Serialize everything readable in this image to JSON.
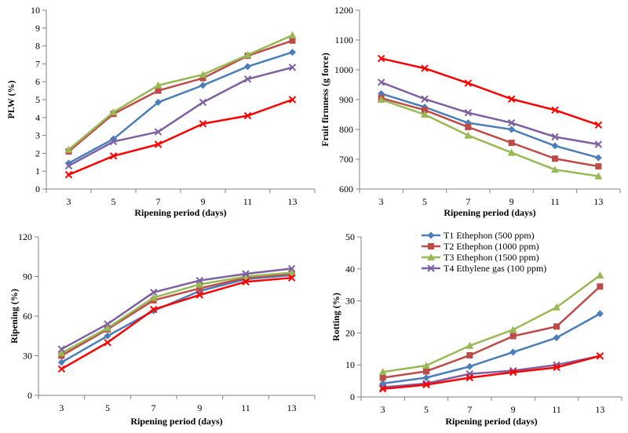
{
  "series_colors": [
    "#4a7ebb",
    "#be4b48",
    "#98b954",
    "#7d60a0",
    "#ff0000"
  ],
  "legend": {
    "entries": [
      "T1 Ethephon (500 ppm)",
      "T2 Ethephon (1000 ppm)",
      "T3 Ethephon (1500 ppm)",
      "T4 Ethylene gas (100 ppm)"
    ]
  },
  "chart_data": [
    {
      "type": "line",
      "xlabel": "Ripening period (days)",
      "ylabel": "PLW (%)",
      "x": [
        3,
        5,
        7,
        9,
        11,
        13
      ],
      "ylim": [
        0,
        10
      ],
      "yticks": [
        0,
        1,
        2,
        3,
        4,
        5,
        6,
        7,
        8,
        9,
        10
      ],
      "series": [
        {
          "name": "T1 Ethephon (500 ppm)",
          "marker": "diamond",
          "values": [
            1.45,
            2.8,
            4.85,
            5.8,
            6.85,
            7.65
          ]
        },
        {
          "name": "T2 Ethephon (1000 ppm)",
          "marker": "square",
          "values": [
            2.1,
            4.2,
            5.5,
            6.2,
            7.45,
            8.3
          ]
        },
        {
          "name": "T3 Ethephon (1500 ppm)",
          "marker": "triangle",
          "values": [
            2.2,
            4.3,
            5.8,
            6.4,
            7.5,
            8.6
          ]
        },
        {
          "name": "T4 Ethylene gas (100 ppm)",
          "marker": "x",
          "values": [
            1.3,
            2.65,
            3.2,
            4.85,
            6.15,
            6.8
          ]
        },
        {
          "marker": "x",
          "values": [
            0.8,
            1.85,
            2.5,
            3.65,
            4.1,
            5.0
          ]
        }
      ]
    },
    {
      "type": "line",
      "xlabel": "Ripening period (days)",
      "ylabel": "Fruit firmness (g force)",
      "x": [
        3,
        5,
        7,
        9,
        11,
        13
      ],
      "ylim": [
        600,
        1200
      ],
      "yticks": [
        600,
        700,
        800,
        900,
        1000,
        1100,
        1200
      ],
      "series": [
        {
          "name": "T1 Ethephon (500 ppm)",
          "marker": "diamond",
          "values": [
            920,
            875,
            822,
            800,
            745,
            705
          ]
        },
        {
          "name": "T2 Ethephon (1000 ppm)",
          "marker": "square",
          "values": [
            905,
            865,
            808,
            755,
            702,
            676
          ]
        },
        {
          "name": "T3 Ethephon (1500 ppm)",
          "marker": "triangle",
          "values": [
            900,
            850,
            780,
            722,
            665,
            643
          ]
        },
        {
          "name": "T4 Ethylene gas (100 ppm)",
          "marker": "x",
          "values": [
            958,
            902,
            856,
            822,
            775,
            750
          ]
        },
        {
          "marker": "x",
          "values": [
            1038,
            1005,
            955,
            902,
            865,
            815
          ]
        }
      ]
    },
    {
      "type": "line",
      "xlabel": "Ripening period (days)",
      "ylabel": "Ripening (%)",
      "x": [
        3,
        5,
        7,
        9,
        11,
        13
      ],
      "ylim": [
        0,
        120
      ],
      "yticks": [
        0,
        30,
        60,
        90,
        120
      ],
      "series": [
        {
          "name": "T1 Ethephon (500 ppm)",
          "marker": "diamond",
          "values": [
            25,
            45,
            64,
            79,
            88,
            91
          ]
        },
        {
          "name": "T2 Ethephon (1000 ppm)",
          "marker": "square",
          "values": [
            30,
            50,
            72,
            81,
            89,
            92
          ]
        },
        {
          "name": "T3 Ethephon (1500 ppm)",
          "marker": "triangle",
          "values": [
            32,
            51,
            74,
            84,
            90,
            93
          ]
        },
        {
          "name": "T4 Ethylene gas (100 ppm)",
          "marker": "x",
          "values": [
            35,
            54,
            78,
            87,
            92,
            96
          ]
        },
        {
          "marker": "x",
          "values": [
            20,
            40,
            65,
            76,
            86,
            89
          ]
        }
      ]
    },
    {
      "type": "line",
      "xlabel": "Ripening period (days)",
      "ylabel": "Rotting (%)",
      "x": [
        3,
        5,
        7,
        9,
        11,
        13
      ],
      "ylim": [
        0,
        50
      ],
      "yticks": [
        0,
        10,
        20,
        30,
        40,
        50
      ],
      "legend_position": "top-left",
      "series": [
        {
          "name": "T1 Ethephon (500 ppm)",
          "marker": "diamond",
          "values": [
            4.2,
            6,
            9.5,
            14,
            18.5,
            26
          ]
        },
        {
          "name": "T2 Ethephon (1000 ppm)",
          "marker": "square",
          "values": [
            6,
            8,
            13,
            19,
            22,
            34.5
          ]
        },
        {
          "name": "T3 Ethephon (1500 ppm)",
          "marker": "triangle",
          "values": [
            7.8,
            9.8,
            16,
            21,
            28,
            38
          ]
        },
        {
          "name": "T4 Ethylene gas (100 ppm)",
          "marker": "x",
          "values": [
            3,
            4.2,
            7.2,
            8.2,
            10,
            12.8
          ]
        },
        {
          "marker": "x",
          "values": [
            2.5,
            3.8,
            6,
            7.7,
            9.2,
            12.8
          ]
        }
      ]
    }
  ]
}
